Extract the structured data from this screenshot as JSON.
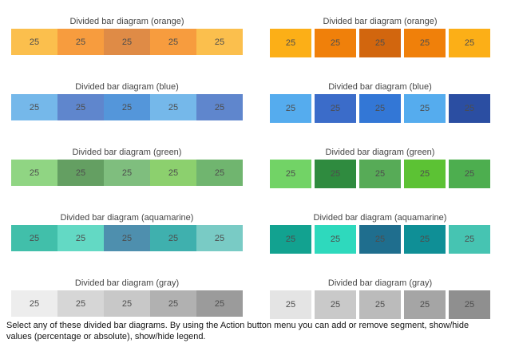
{
  "page": {
    "background": "#ffffff",
    "footer_text": "Select any of these divided bar diagrams. By using the Action button menu you can add or remove segment, show/hide values (percentage or absolute), show/hide legend."
  },
  "chart_data": {
    "type": "bar",
    "subtype": "divided-bar",
    "value_label": "percentage",
    "columns": [
      {
        "name": "left",
        "style": "contiguous",
        "bars": [
          {
            "title": "Divided bar diagram (orange)",
            "values": [
              25,
              25,
              25,
              25,
              25
            ],
            "colors": [
              "#FBBF4D",
              "#F79C3E",
              "#DF8B46",
              "#F79C3E",
              "#FBBF4D"
            ]
          },
          {
            "title": "Divided bar diagram (blue)",
            "values": [
              25,
              25,
              25,
              25,
              25
            ],
            "colors": [
              "#75B8EA",
              "#5F86CD",
              "#5496DA",
              "#75B8EA",
              "#5F86CD"
            ]
          },
          {
            "title": "Divided bar diagram (green)",
            "values": [
              25,
              25,
              25,
              25,
              25
            ],
            "colors": [
              "#90D583",
              "#649F62",
              "#7FBE7E",
              "#8CD06E",
              "#70B56F"
            ]
          },
          {
            "title": "Divided bar diagram (aquamarine)",
            "values": [
              25,
              25,
              25,
              25,
              25
            ],
            "colors": [
              "#41BFAA",
              "#63D9C4",
              "#4E8FAE",
              "#3FB0AE",
              "#79CBC5"
            ]
          },
          {
            "title": "Divided bar diagram (gray)",
            "values": [
              25,
              25,
              25,
              25,
              25
            ],
            "colors": [
              "#EDEDED",
              "#D6D6D6",
              "#C8C8C8",
              "#B1B1B1",
              "#9B9B9B"
            ]
          }
        ]
      },
      {
        "name": "right",
        "style": "segmented",
        "bars": [
          {
            "title": "Divided bar diagram (orange)",
            "values": [
              25,
              25,
              25,
              25,
              25
            ],
            "colors": [
              "#FCAF17",
              "#F0800A",
              "#D2660E",
              "#F0800A",
              "#FCAF17"
            ]
          },
          {
            "title": "Divided bar diagram (blue)",
            "values": [
              25,
              25,
              25,
              25,
              25
            ],
            "colors": [
              "#55ACEE",
              "#3B6CC9",
              "#3377D6",
              "#55ACEE",
              "#2B4EA2"
            ]
          },
          {
            "title": "Divided bar diagram (green)",
            "values": [
              25,
              25,
              25,
              25,
              25
            ],
            "colors": [
              "#72D366",
              "#2F8B3F",
              "#57AB57",
              "#5CC234",
              "#4DAE4F"
            ]
          },
          {
            "title": "Divided bar diagram (aquamarine)",
            "values": [
              25,
              25,
              25,
              25,
              25
            ],
            "colors": [
              "#12A290",
              "#2ED9BD",
              "#1F6E8E",
              "#0F8F96",
              "#46C4B2"
            ]
          },
          {
            "title": "Divided bar diagram (gray)",
            "values": [
              25,
              25,
              25,
              25,
              25
            ],
            "colors": [
              "#E4E4E4",
              "#C9C9C9",
              "#BBBBBB",
              "#A5A5A5",
              "#8F8F8F"
            ]
          }
        ]
      }
    ]
  }
}
